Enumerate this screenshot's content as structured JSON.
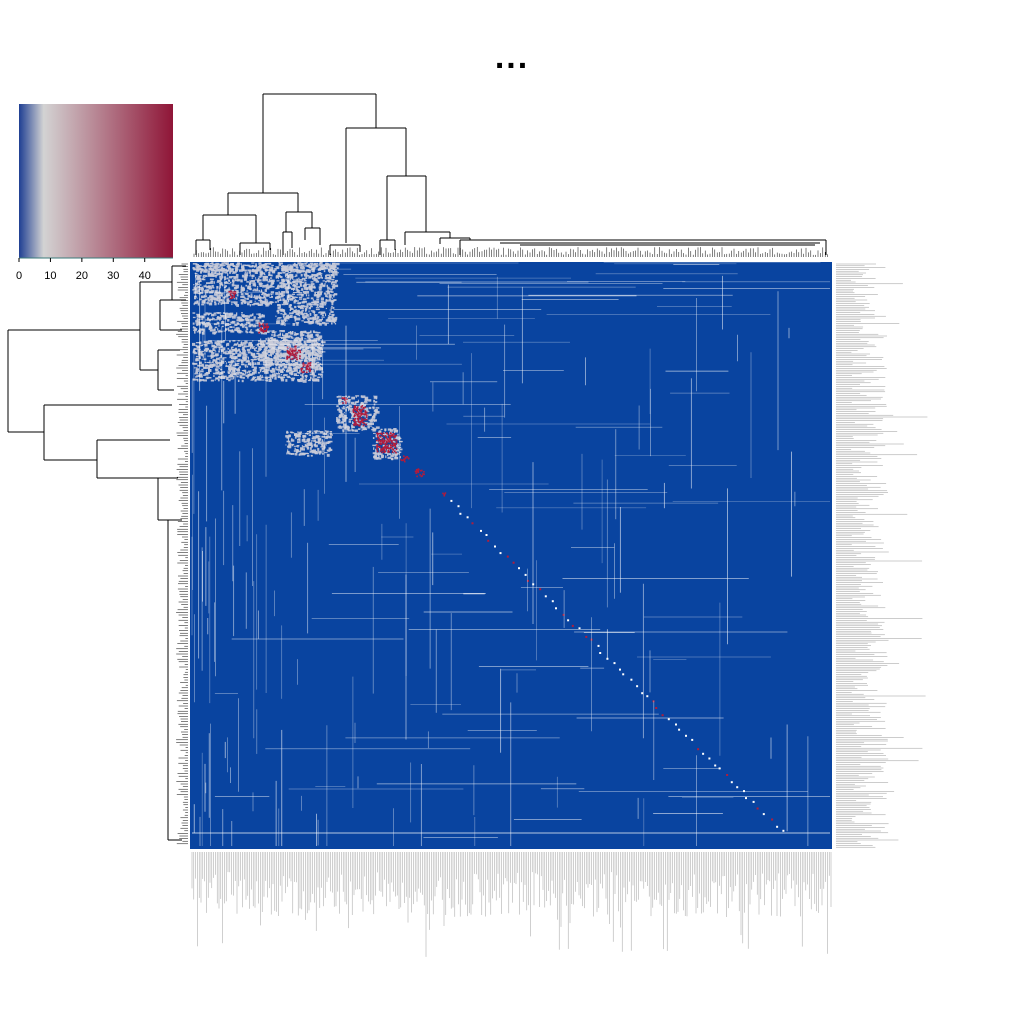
{
  "chart_data": {
    "type": "heatmap",
    "title": "...",
    "legend": {
      "placement": "top-left",
      "ticks": [
        "0",
        "10",
        "20",
        "30",
        "40"
      ],
      "range": [
        0,
        49
      ],
      "colors": [
        "#1f3f93",
        "#d3d3d3",
        "#8f1537"
      ]
    },
    "colors": {
      "background": "#0944a0",
      "light": "#c9cbd8",
      "high": "#b01c3c",
      "dendrogram": "#000000",
      "labels": "#888888"
    },
    "row_dendrogram": true,
    "column_dendrogram": true,
    "rows_clustered": true,
    "columns_clustered": true,
    "row_labels_legible": false,
    "column_labels_legible": false,
    "grid": false
  }
}
